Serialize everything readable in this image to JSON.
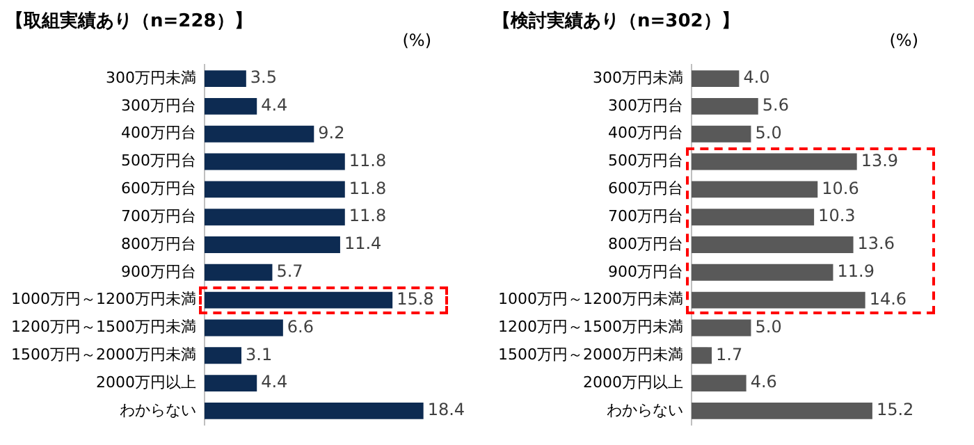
{
  "chart_data": [
    {
      "type": "bar",
      "orientation": "horizontal",
      "title": "【取組実績あり（n=228）】",
      "annotations": [
        "(%)"
      ],
      "categories": [
        "300万円未満",
        "300万円台",
        "400万円台",
        "500万円台",
        "600万円台",
        "700万円台",
        "800万円台",
        "900万円台",
        "1000万円～1200万円未満",
        "1200万円～1500万円未満",
        "1500万円～2000万円未満",
        "2000万円以上",
        "わからない"
      ],
      "values": [
        3.5,
        4.4,
        9.2,
        11.8,
        11.8,
        11.8,
        11.4,
        5.7,
        15.8,
        6.6,
        3.1,
        4.4,
        18.4
      ],
      "color": "#0d2b52",
      "value_labels": [
        "3.5",
        "4.4",
        "9.2",
        "11.8",
        "11.8",
        "11.8",
        "11.4",
        "5.7",
        "15.8",
        "6.6",
        "3.1",
        "4.4",
        "18.4"
      ],
      "grid": false,
      "legend": false,
      "tick_labels": "y"
    },
    {
      "type": "bar",
      "orientation": "horizontal",
      "title": "【検討実績あり（n=302）】",
      "annotations": [
        "(%)"
      ],
      "categories": [
        "300万円未満",
        "300万円台",
        "400万円台",
        "500万円台",
        "600万円台",
        "700万円台",
        "800万円台",
        "900万円台",
        "1000万円～1200万円未満",
        "1200万円～1500万円未満",
        "1500万円～2000万円未満",
        "2000万円以上",
        "わからない"
      ],
      "values": [
        4.0,
        5.6,
        5.0,
        13.9,
        10.6,
        10.3,
        13.6,
        11.9,
        14.6,
        5.0,
        1.7,
        4.6,
        15.2
      ],
      "color": "#595959",
      "value_labels": [
        "4.0",
        "5.6",
        "5.0",
        "13.9",
        "10.6",
        "10.3",
        "13.6",
        "11.9",
        "14.6",
        "5.0",
        "1.7",
        "4.6",
        "15.2"
      ],
      "grid": false,
      "legend": false,
      "tick_labels": "y"
    }
  ]
}
